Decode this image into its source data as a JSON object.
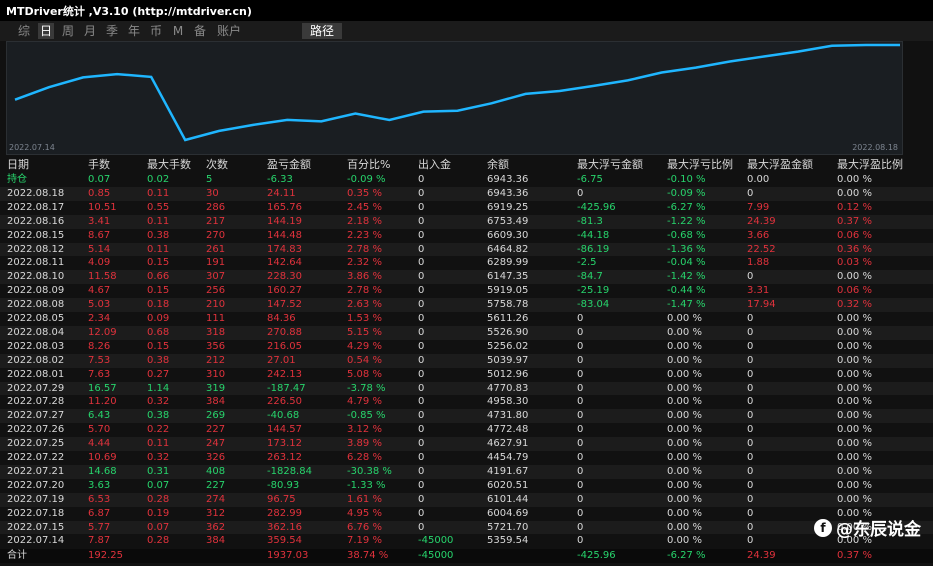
{
  "window": {
    "title": "MTDriver统计 ,V3.10 (http://mtdriver.cn)"
  },
  "tabs": [
    {
      "label": "综",
      "active": false
    },
    {
      "label": "日",
      "active": true
    },
    {
      "label": "周",
      "active": false
    },
    {
      "label": "月",
      "active": false
    },
    {
      "label": "季",
      "active": false
    },
    {
      "label": "年",
      "active": false
    },
    {
      "label": "币",
      "active": false
    },
    {
      "label": "M",
      "active": false
    },
    {
      "label": "备",
      "active": false
    },
    {
      "label": "账户",
      "active": false
    },
    {
      "label": "路径",
      "active": true
    }
  ],
  "chart": {
    "start_label": "2022.07.14",
    "end_label": "2022.08.18",
    "line_color": "#1fb6ff",
    "series": [
      5359.54,
      5721.7,
      6004.69,
      6101.44,
      6020.51,
      4191.67,
      4454.79,
      4627.91,
      4772.48,
      4731.8,
      4958.3,
      4770.83,
      5012.96,
      5039.97,
      5256.02,
      5526.9,
      5611.26,
      5758.78,
      5919.05,
      6147.35,
      6289.99,
      6464.82,
      6609.3,
      6753.49,
      6919.25,
      6943.36,
      6943.36
    ]
  },
  "table": {
    "headers": [
      "日期",
      "手数",
      "最大手数",
      "次数",
      "盈亏金额",
      "百分比%",
      "出入金",
      "余额",
      "最大浮亏金额",
      "最大浮亏比例",
      "最大浮盈金额",
      "最大浮盈比例"
    ],
    "rows": [
      {
        "c": [
          "持仓",
          "0.07",
          "0.02",
          "5",
          "-6.33",
          "-0.09 %",
          "0",
          "6943.36",
          "-6.75",
          "-0.10 %",
          "0.00",
          "0.00 %"
        ],
        "k": "green"
      },
      {
        "c": [
          "2022.08.18",
          "0.85",
          "0.11",
          "30",
          "24.11",
          "0.35 %",
          "0",
          "6943.36",
          "0",
          "-0.09 %",
          "0",
          "0.00 %"
        ],
        "k": "red"
      },
      {
        "c": [
          "2022.08.17",
          "10.51",
          "0.55",
          "286",
          "165.76",
          "2.45 %",
          "0",
          "6919.25",
          "-425.96",
          "-6.27 %",
          "7.99",
          "0.12 %"
        ],
        "k": "red"
      },
      {
        "c": [
          "2022.08.16",
          "3.41",
          "0.11",
          "217",
          "144.19",
          "2.18 %",
          "0",
          "6753.49",
          "-81.3",
          "-1.22 %",
          "24.39",
          "0.37 %"
        ],
        "k": "red"
      },
      {
        "c": [
          "2022.08.15",
          "8.67",
          "0.38",
          "270",
          "144.48",
          "2.23 %",
          "0",
          "6609.30",
          "-44.18",
          "-0.68 %",
          "3.66",
          "0.06 %"
        ],
        "k": "red"
      },
      {
        "c": [
          "2022.08.12",
          "5.14",
          "0.11",
          "261",
          "174.83",
          "2.78 %",
          "0",
          "6464.82",
          "-86.19",
          "-1.36 %",
          "22.52",
          "0.36 %"
        ],
        "k": "red"
      },
      {
        "c": [
          "2022.08.11",
          "4.09",
          "0.15",
          "191",
          "142.64",
          "2.32 %",
          "0",
          "6289.99",
          "-2.5",
          "-0.04 %",
          "1.88",
          "0.03 %"
        ],
        "k": "red"
      },
      {
        "c": [
          "2022.08.10",
          "11.58",
          "0.66",
          "307",
          "228.30",
          "3.86 %",
          "0",
          "6147.35",
          "-84.7",
          "-1.42 %",
          "0",
          "0.00 %"
        ],
        "k": "red"
      },
      {
        "c": [
          "2022.08.09",
          "4.67",
          "0.15",
          "256",
          "160.27",
          "2.78 %",
          "0",
          "5919.05",
          "-25.19",
          "-0.44 %",
          "3.31",
          "0.06 %"
        ],
        "k": "red"
      },
      {
        "c": [
          "2022.08.08",
          "5.03",
          "0.18",
          "210",
          "147.52",
          "2.63 %",
          "0",
          "5758.78",
          "-83.04",
          "-1.47 %",
          "17.94",
          "0.32 %"
        ],
        "k": "red"
      },
      {
        "c": [
          "2022.08.05",
          "2.34",
          "0.09",
          "111",
          "84.36",
          "1.53 %",
          "0",
          "5611.26",
          "0",
          "0.00 %",
          "0",
          "0.00 %"
        ],
        "k": "red"
      },
      {
        "c": [
          "2022.08.04",
          "12.09",
          "0.68",
          "318",
          "270.88",
          "5.15 %",
          "0",
          "5526.90",
          "0",
          "0.00 %",
          "0",
          "0.00 %"
        ],
        "k": "red"
      },
      {
        "c": [
          "2022.08.03",
          "8.26",
          "0.15",
          "356",
          "216.05",
          "4.29 %",
          "0",
          "5256.02",
          "0",
          "0.00 %",
          "0",
          "0.00 %"
        ],
        "k": "red"
      },
      {
        "c": [
          "2022.08.02",
          "7.53",
          "0.38",
          "212",
          "27.01",
          "0.54 %",
          "0",
          "5039.97",
          "0",
          "0.00 %",
          "0",
          "0.00 %"
        ],
        "k": "red"
      },
      {
        "c": [
          "2022.08.01",
          "7.63",
          "0.27",
          "310",
          "242.13",
          "5.08 %",
          "0",
          "5012.96",
          "0",
          "0.00 %",
          "0",
          "0.00 %"
        ],
        "k": "red"
      },
      {
        "c": [
          "2022.07.29",
          "16.57",
          "1.14",
          "319",
          "-187.47",
          "-3.78 %",
          "0",
          "4770.83",
          "0",
          "0.00 %",
          "0",
          "0.00 %"
        ],
        "k": "green"
      },
      {
        "c": [
          "2022.07.28",
          "11.20",
          "0.32",
          "384",
          "226.50",
          "4.79 %",
          "0",
          "4958.30",
          "0",
          "0.00 %",
          "0",
          "0.00 %"
        ],
        "k": "red"
      },
      {
        "c": [
          "2022.07.27",
          "6.43",
          "0.38",
          "269",
          "-40.68",
          "-0.85 %",
          "0",
          "4731.80",
          "0",
          "0.00 %",
          "0",
          "0.00 %"
        ],
        "k": "green"
      },
      {
        "c": [
          "2022.07.26",
          "5.70",
          "0.22",
          "227",
          "144.57",
          "3.12 %",
          "0",
          "4772.48",
          "0",
          "0.00 %",
          "0",
          "0.00 %"
        ],
        "k": "red"
      },
      {
        "c": [
          "2022.07.25",
          "4.44",
          "0.11",
          "247",
          "173.12",
          "3.89 %",
          "0",
          "4627.91",
          "0",
          "0.00 %",
          "0",
          "0.00 %"
        ],
        "k": "red"
      },
      {
        "c": [
          "2022.07.22",
          "10.69",
          "0.32",
          "326",
          "263.12",
          "6.28 %",
          "0",
          "4454.79",
          "0",
          "0.00 %",
          "0",
          "0.00 %"
        ],
        "k": "red"
      },
      {
        "c": [
          "2022.07.21",
          "14.68",
          "0.31",
          "408",
          "-1828.84",
          "-30.38 %",
          "0",
          "4191.67",
          "0",
          "0.00 %",
          "0",
          "0.00 %"
        ],
        "k": "green"
      },
      {
        "c": [
          "2022.07.20",
          "3.63",
          "0.07",
          "227",
          "-80.93",
          "-1.33 %",
          "0",
          "6020.51",
          "0",
          "0.00 %",
          "0",
          "0.00 %"
        ],
        "k": "green"
      },
      {
        "c": [
          "2022.07.19",
          "6.53",
          "0.28",
          "274",
          "96.75",
          "1.61 %",
          "0",
          "6101.44",
          "0",
          "0.00 %",
          "0",
          "0.00 %"
        ],
        "k": "red"
      },
      {
        "c": [
          "2022.07.18",
          "6.87",
          "0.19",
          "312",
          "282.99",
          "4.95 %",
          "0",
          "6004.69",
          "0",
          "0.00 %",
          "0",
          "0.00 %"
        ],
        "k": "red"
      },
      {
        "c": [
          "2022.07.15",
          "5.77",
          "0.07",
          "362",
          "362.16",
          "6.76 %",
          "0",
          "5721.70",
          "0",
          "0.00 %",
          "0",
          "0.00 %"
        ],
        "k": "red"
      },
      {
        "c": [
          "2022.07.14",
          "7.87",
          "0.28",
          "384",
          "359.54",
          "7.19 %",
          "-45000",
          "5359.54",
          "0",
          "0.00 %",
          "0",
          "0.00 %"
        ],
        "k": "red",
        "flow": "green"
      }
    ],
    "total": {
      "c": [
        "合计",
        "192.25",
        "",
        "",
        "1937.03",
        "38.74 %",
        "-45000",
        "",
        "-425.96",
        "-6.27 %",
        "24.39",
        "0.37 %"
      ]
    }
  },
  "watermark": {
    "text": "@东辰说金"
  }
}
